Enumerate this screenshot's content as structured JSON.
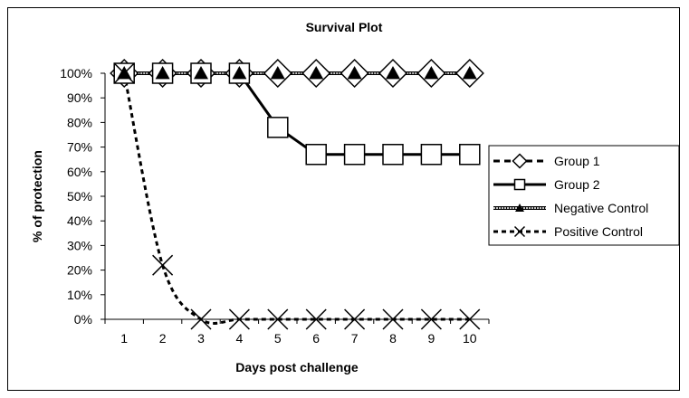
{
  "chart_data": {
    "type": "line",
    "title": "Survival Plot",
    "xlabel": "Days post challenge",
    "ylabel": "% of protection",
    "x": [
      1,
      2,
      3,
      4,
      5,
      6,
      7,
      8,
      9,
      10
    ],
    "x_tick_labels": [
      "1",
      "2",
      "3",
      "4",
      "5",
      "6",
      "7",
      "8",
      "9",
      "10"
    ],
    "ylim": [
      0,
      100
    ],
    "y_tick_labels": [
      "0%",
      "10%",
      "20%",
      "30%",
      "40%",
      "50%",
      "60%",
      "70%",
      "80%",
      "90%",
      "100%"
    ],
    "grid": false,
    "legend_position": "right",
    "series": [
      {
        "name": "Group 1",
        "values": [
          100,
          100,
          100,
          100,
          100,
          100,
          100,
          100,
          100,
          100
        ],
        "line": "dashed",
        "marker": "diamond"
      },
      {
        "name": "Group 2",
        "values": [
          100,
          100,
          100,
          100,
          78,
          67,
          67,
          67,
          67,
          67
        ],
        "line": "solid",
        "marker": "square"
      },
      {
        "name": "Negative Control",
        "values": [
          100,
          100,
          100,
          100,
          100,
          100,
          100,
          100,
          100,
          100
        ],
        "line": "double",
        "marker": "triangle"
      },
      {
        "name": "Positive Control",
        "values": [
          100,
          22,
          0,
          0,
          0,
          0,
          0,
          0,
          0,
          0
        ],
        "line": "dotted-curve",
        "marker": "x"
      }
    ]
  }
}
